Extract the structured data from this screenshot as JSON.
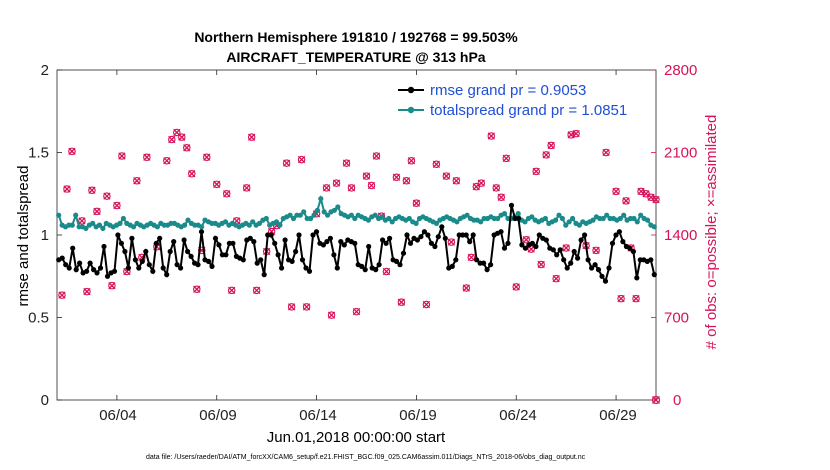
{
  "chart_data": {
    "type": "line",
    "title_line1": "Northern Hemisphere 191810 / 192768 = 99.503%",
    "title_line2": "AIRCRAFT_TEMPERATURE @ 313 hPa",
    "ylabel_left": "rmse and totalspread",
    "ylabel_right": "# of obs: o=possible; ×=assimilated",
    "xlabel": "Jun.01,2018 00:00:00 start",
    "footnote": "data file: /Users/raeder/DAI/ATM_forcXX/CAM6_setup/f.e21.FHIST_BGC.f09_025.CAM6assim.011/Diags_NTrS_2018-06/obs_diag_output.nc",
    "ylim_left": [
      0,
      2
    ],
    "ylim_right": [
      0,
      2800
    ],
    "xlim_days": [
      0.5,
      30.5
    ],
    "yticks_left": [
      "0",
      "0.5",
      "1",
      "1.5",
      "2"
    ],
    "yticks_right": [
      "0",
      "700",
      "1400",
      "2100",
      "2800"
    ],
    "xtick_labels": [
      "06/04",
      "06/09",
      "06/14",
      "06/19",
      "06/24",
      "06/29"
    ],
    "xtick_days": [
      3.5,
      8.5,
      13.5,
      18.5,
      23.5,
      28.5
    ],
    "colors": {
      "rmse": "#000000",
      "spread": "#1a8a8a",
      "obs": "#d6125a",
      "legend_text": "#1f4fd8"
    },
    "series": [
      {
        "name": "rmse grand pr = 0.9053",
        "values": [
          0.85,
          0.86,
          0.82,
          0.8,
          0.92,
          0.79,
          0.83,
          0.77,
          0.78,
          0.83,
          0.79,
          0.77,
          0.8,
          0.93,
          0.75,
          0.77,
          0.78,
          1.0,
          0.95,
          0.9,
          0.8,
          0.98,
          0.85,
          0.8,
          0.84,
          0.9,
          0.82,
          0.78,
          0.95,
          0.98,
          0.8,
          0.76,
          0.9,
          0.96,
          0.82,
          0.8,
          0.97,
          0.9,
          0.87,
          0.83,
          0.82,
          1.02,
          0.85,
          0.84,
          0.81,
          0.98,
          0.94,
          0.88,
          0.88,
          0.95,
          0.95,
          0.87,
          0.86,
          0.85,
          0.97,
          0.98,
          0.96,
          0.83,
          0.85,
          0.76,
          1.0,
          1.0,
          0.95,
          0.88,
          0.8,
          0.97,
          0.85,
          0.84,
          0.9,
          1.0,
          0.85,
          0.8,
          0.78,
          1.0,
          1.02,
          0.95,
          0.94,
          0.96,
          0.98,
          0.88,
          0.8,
          0.96,
          0.94,
          0.97,
          0.96,
          0.95,
          0.82,
          0.81,
          0.79,
          0.93,
          0.8,
          0.79,
          0.82,
          0.97,
          0.95,
          0.98,
          0.85,
          0.84,
          0.82,
          0.89,
          1.0,
          0.95,
          0.98,
          0.97,
          0.99,
          1.02,
          1.0,
          0.95,
          0.93,
          0.99,
          1.05,
          0.98,
          0.8,
          0.81,
          0.85,
          1.0,
          1.0,
          1.0,
          0.96,
          1.0,
          0.85,
          0.83,
          0.83,
          0.79,
          0.82,
          1.0,
          1.01,
          1.02,
          0.92,
          0.95,
          1.18,
          1.1,
          1.1,
          0.94,
          0.92,
          0.94,
          0.95,
          0.93,
          1.0,
          0.98,
          0.97,
          0.92,
          0.91,
          0.88,
          0.91,
          0.85,
          0.8,
          0.83,
          0.9,
          0.86,
          0.97,
          1.0,
          0.85,
          0.8,
          0.82,
          0.79,
          0.75,
          0.72,
          0.8,
          0.95,
          1.0,
          1.02,
          0.96,
          0.93,
          0.92,
          0.9,
          0.74,
          0.85,
          0.85,
          0.84,
          0.85,
          0.76
        ]
      },
      {
        "name": "totalspread grand pr = 1.0851",
        "values": [
          1.12,
          1.06,
          1.05,
          1.06,
          1.06,
          1.12,
          1.05,
          1.05,
          1.04,
          1.06,
          1.07,
          1.05,
          1.06,
          1.04,
          1.07,
          1.06,
          1.05,
          1.06,
          1.07,
          1.1,
          1.07,
          1.06,
          1.05,
          1.07,
          1.06,
          1.05,
          1.06,
          1.07,
          1.06,
          1.05,
          1.07,
          1.06,
          1.06,
          1.07,
          1.07,
          1.06,
          1.05,
          1.06,
          1.09,
          1.07,
          1.06,
          1.06,
          1.05,
          1.09,
          1.08,
          1.07,
          1.07,
          1.06,
          1.07,
          1.08,
          1.06,
          1.07,
          1.06,
          1.05,
          1.06,
          1.07,
          1.06,
          1.08,
          1.06,
          1.07,
          1.09,
          1.1,
          1.06,
          1.07,
          1.08,
          1.06,
          1.1,
          1.11,
          1.12,
          1.1,
          1.12,
          1.12,
          1.14,
          1.1,
          1.1,
          1.12,
          1.15,
          1.22,
          1.14,
          1.12,
          1.14,
          1.15,
          1.17,
          1.13,
          1.12,
          1.11,
          1.12,
          1.1,
          1.12,
          1.11,
          1.1,
          1.09,
          1.11,
          1.12,
          1.1,
          1.11,
          1.09,
          1.1,
          1.08,
          1.1,
          1.11,
          1.1,
          1.09,
          1.1,
          1.08,
          1.07,
          1.1,
          1.11,
          1.1,
          1.09,
          1.08,
          1.07,
          1.09,
          1.1,
          1.11,
          1.1,
          1.09,
          1.08,
          1.1,
          1.11,
          1.12,
          1.1,
          1.09,
          1.09,
          1.08,
          1.1,
          1.1,
          1.11,
          1.1,
          1.1,
          1.12,
          1.13,
          1.1,
          1.1,
          1.11,
          1.13,
          1.09,
          1.08,
          1.1,
          1.11,
          1.09,
          1.08,
          1.09,
          1.1,
          1.07,
          1.08,
          1.09,
          1.12,
          1.1,
          1.06,
          1.08,
          1.1,
          1.07,
          1.06,
          1.08,
          1.07,
          1.08,
          1.09,
          1.11,
          1.1,
          1.1,
          1.12,
          1.1,
          1.1,
          1.09,
          1.1,
          1.12,
          1.09,
          1.1,
          1.1,
          1.08,
          1.12,
          1.1,
          1.09,
          1.06,
          1.05
        ]
      }
    ],
    "obs_count": [
      [
        0.75,
        890
      ],
      [
        1.0,
        1790
      ],
      [
        1.25,
        2110
      ],
      [
        1.75,
        1520
      ],
      [
        2.0,
        920
      ],
      [
        2.25,
        1780
      ],
      [
        2.5,
        1600
      ],
      [
        3.0,
        1730
      ],
      [
        3.25,
        970
      ],
      [
        3.5,
        1650
      ],
      [
        3.75,
        2070
      ],
      [
        4.0,
        1090
      ],
      [
        4.5,
        1860
      ],
      [
        4.75,
        1210
      ],
      [
        5.0,
        2060
      ],
      [
        5.5,
        1300
      ],
      [
        6.0,
        2030
      ],
      [
        6.25,
        2210
      ],
      [
        6.5,
        2270
      ],
      [
        6.75,
        2230
      ],
      [
        7.0,
        2140
      ],
      [
        7.25,
        1920
      ],
      [
        7.5,
        940
      ],
      [
        7.75,
        1270
      ],
      [
        8.0,
        2060
      ],
      [
        8.5,
        1830
      ],
      [
        9.0,
        1750
      ],
      [
        9.25,
        930
      ],
      [
        9.5,
        1520
      ],
      [
        10.0,
        1800
      ],
      [
        10.25,
        2230
      ],
      [
        10.5,
        930
      ],
      [
        11.0,
        1260
      ],
      [
        11.25,
        1430
      ],
      [
        11.5,
        1480
      ],
      [
        12.0,
        2010
      ],
      [
        12.25,
        790
      ],
      [
        12.75,
        2040
      ],
      [
        13.0,
        790
      ],
      [
        13.5,
        1580
      ],
      [
        14.0,
        1800
      ],
      [
        14.25,
        720
      ],
      [
        14.5,
        1840
      ],
      [
        15.0,
        2010
      ],
      [
        15.25,
        1800
      ],
      [
        15.5,
        750
      ],
      [
        16.0,
        1900
      ],
      [
        16.25,
        1820
      ],
      [
        16.5,
        2070
      ],
      [
        16.75,
        1560
      ],
      [
        17.0,
        1090
      ],
      [
        17.5,
        1890
      ],
      [
        17.75,
        830
      ],
      [
        18.0,
        1860
      ],
      [
        18.25,
        2030
      ],
      [
        18.5,
        1670
      ],
      [
        19.0,
        810
      ],
      [
        19.5,
        2000
      ],
      [
        20.0,
        1900
      ],
      [
        20.25,
        1340
      ],
      [
        20.5,
        1860
      ],
      [
        21.0,
        950
      ],
      [
        21.25,
        1210
      ],
      [
        21.5,
        1810
      ],
      [
        21.75,
        1840
      ],
      [
        22.25,
        2240
      ],
      [
        22.5,
        1800
      ],
      [
        22.75,
        1720
      ],
      [
        23.0,
        2050
      ],
      [
        23.5,
        960
      ],
      [
        24.0,
        1360
      ],
      [
        24.25,
        1280
      ],
      [
        24.5,
        1940
      ],
      [
        24.75,
        1150
      ],
      [
        25.0,
        2080
      ],
      [
        25.25,
        2160
      ],
      [
        25.5,
        1030
      ],
      [
        26.0,
        1290
      ],
      [
        26.25,
        2250
      ],
      [
        26.5,
        2260
      ],
      [
        27.0,
        1310
      ],
      [
        27.5,
        1270
      ],
      [
        28.0,
        2100
      ],
      [
        28.5,
        1770
      ],
      [
        28.75,
        860
      ],
      [
        29.0,
        1690
      ],
      [
        29.25,
        1290
      ],
      [
        29.5,
        860
      ],
      [
        29.75,
        1770
      ],
      [
        30.0,
        1750
      ],
      [
        30.25,
        1720
      ],
      [
        30.5,
        1700
      ]
    ],
    "legend": [
      {
        "label": "rmse grand pr = 0.9053"
      },
      {
        "label": "totalspread grand pr = 1.0851"
      }
    ]
  }
}
